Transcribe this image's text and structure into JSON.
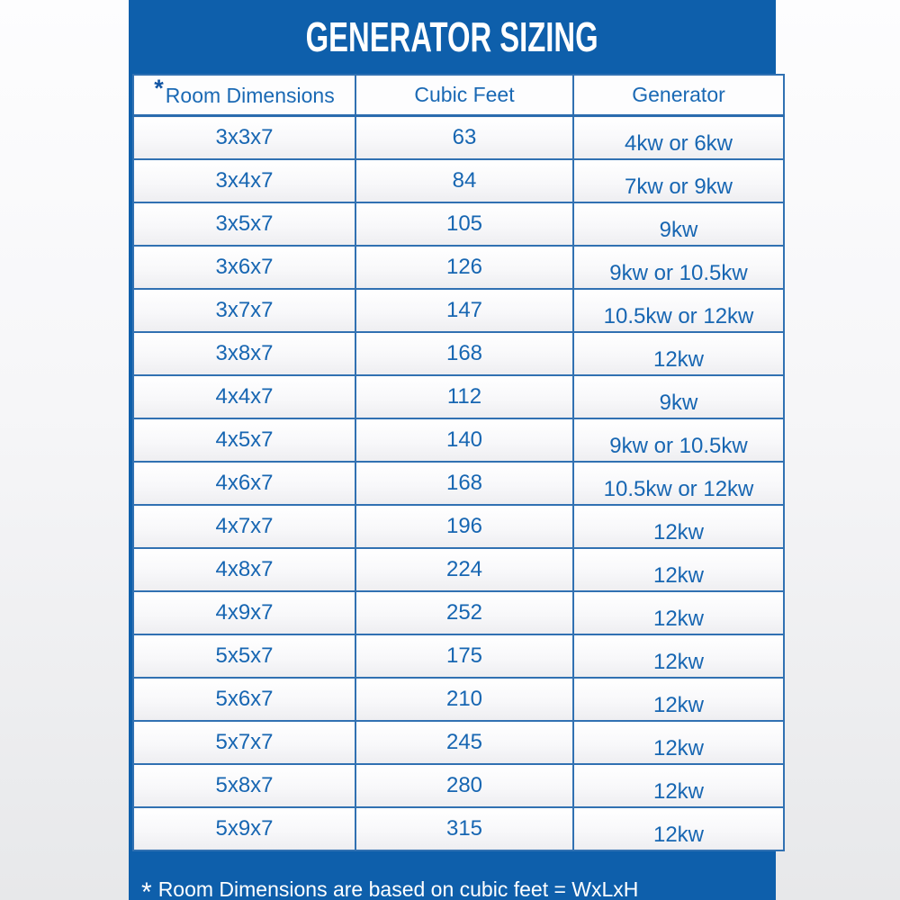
{
  "title": "GENERATOR SIZING",
  "chart_data": {
    "type": "table",
    "title": "GENERATOR SIZING",
    "columns": [
      "Room Dimensions",
      "Cubic Feet",
      "Generator"
    ],
    "rows": [
      {
        "room_dimensions": "3x3x7",
        "cubic_feet": "63",
        "generator": "4kw or 6kw"
      },
      {
        "room_dimensions": "3x4x7",
        "cubic_feet": "84",
        "generator": "7kw or 9kw"
      },
      {
        "room_dimensions": "3x5x7",
        "cubic_feet": "105",
        "generator": "9kw"
      },
      {
        "room_dimensions": "3x6x7",
        "cubic_feet": "126",
        "generator": "9kw or 10.5kw"
      },
      {
        "room_dimensions": "3x7x7",
        "cubic_feet": "147",
        "generator": "10.5kw or 12kw"
      },
      {
        "room_dimensions": "3x8x7",
        "cubic_feet": "168",
        "generator": "12kw"
      },
      {
        "room_dimensions": "4x4x7",
        "cubic_feet": "112",
        "generator": "9kw"
      },
      {
        "room_dimensions": "4x5x7",
        "cubic_feet": "140",
        "generator": "9kw or 10.5kw"
      },
      {
        "room_dimensions": "4x6x7",
        "cubic_feet": "168",
        "generator": "10.5kw or 12kw"
      },
      {
        "room_dimensions": "4x7x7",
        "cubic_feet": "196",
        "generator": "12kw"
      },
      {
        "room_dimensions": "4x8x7",
        "cubic_feet": "224",
        "generator": "12kw"
      },
      {
        "room_dimensions": "4x9x7",
        "cubic_feet": "252",
        "generator": "12kw"
      },
      {
        "room_dimensions": "5x5x7",
        "cubic_feet": "175",
        "generator": "12kw"
      },
      {
        "room_dimensions": "5x6x7",
        "cubic_feet": "210",
        "generator": "12kw"
      },
      {
        "room_dimensions": "5x7x7",
        "cubic_feet": "245",
        "generator": "12kw"
      },
      {
        "room_dimensions": "5x8x7",
        "cubic_feet": "280",
        "generator": "12kw"
      },
      {
        "room_dimensions": "5x9x7",
        "cubic_feet": "315",
        "generator": "12kw"
      }
    ]
  },
  "footnote": {
    "marker": "*",
    "text": "Room Dimensions are based on cubic feet = WxLxH"
  },
  "colors": {
    "panel_blue": "#0e5fab",
    "table_text_blue": "#1766b2",
    "border_blue": "#3171b2",
    "title_white": "#ffffff",
    "page_background_top": "#fdfdfe",
    "page_background_bottom": "#e7e8ea"
  }
}
